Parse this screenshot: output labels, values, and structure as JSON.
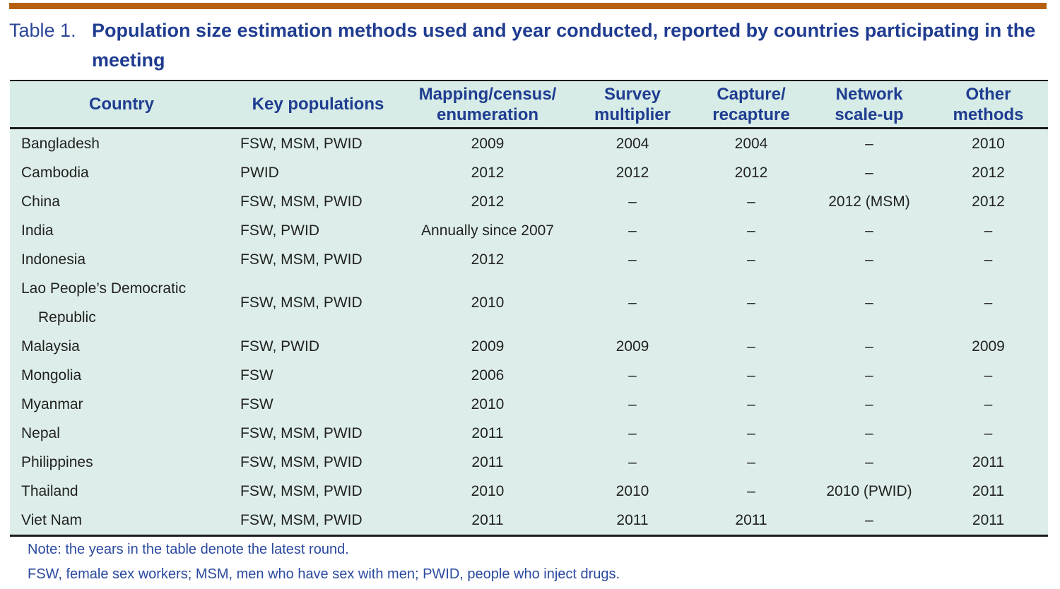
{
  "page": {
    "title_label": "Table 1.",
    "title_text": "Population size estimation methods used and year conducted, reported by countries participating in the\nmeeting"
  },
  "table": {
    "columns": [
      {
        "key": "country",
        "label": "Country"
      },
      {
        "key": "key_populations",
        "label": "Key populations"
      },
      {
        "key": "mapping",
        "label": "Mapping/census/\nenumeration"
      },
      {
        "key": "survey",
        "label": "Survey\nmultiplier"
      },
      {
        "key": "capture",
        "label": "Capture/\nrecapture"
      },
      {
        "key": "network",
        "label": "Network\nscale-up"
      },
      {
        "key": "other",
        "label": "Other\nmethods"
      }
    ],
    "rows": [
      {
        "country": "Bangladesh",
        "key_populations": "FSW, MSM, PWID",
        "mapping": "2009",
        "survey": "2004",
        "capture": "2004",
        "network": "–",
        "other": "2010"
      },
      {
        "country": "Cambodia",
        "key_populations": "PWID",
        "mapping": "2012",
        "survey": "2012",
        "capture": "2012",
        "network": "–",
        "other": "2012"
      },
      {
        "country": "China",
        "key_populations": "FSW, MSM, PWID",
        "mapping": "2012",
        "survey": "–",
        "capture": "–",
        "network": "2012 (MSM)",
        "other": "2012"
      },
      {
        "country": "India",
        "key_populations": "FSW, PWID",
        "mapping": "Annually since 2007",
        "survey": "–",
        "capture": "–",
        "network": "–",
        "other": "–"
      },
      {
        "country": "Indonesia",
        "key_populations": "FSW, MSM, PWID",
        "mapping": "2012",
        "survey": "–",
        "capture": "–",
        "network": "–",
        "other": "–"
      },
      {
        "country": "Lao People’s Democratic\nRepublic",
        "key_populations": "FSW, MSM, PWID",
        "mapping": "2010",
        "survey": "–",
        "capture": "–",
        "network": "–",
        "other": "–"
      },
      {
        "country": "Malaysia",
        "key_populations": "FSW, PWID",
        "mapping": "2009",
        "survey": "2009",
        "capture": "–",
        "network": "–",
        "other": "2009"
      },
      {
        "country": "Mongolia",
        "key_populations": "FSW",
        "mapping": "2006",
        "survey": "–",
        "capture": "–",
        "network": "–",
        "other": "–"
      },
      {
        "country": "Myanmar",
        "key_populations": "FSW",
        "mapping": "2010",
        "survey": "–",
        "capture": "–",
        "network": "–",
        "other": "–"
      },
      {
        "country": "Nepal",
        "key_populations": "FSW, MSM, PWID",
        "mapping": "2011",
        "survey": "–",
        "capture": "–",
        "network": "–",
        "other": "–"
      },
      {
        "country": "Philippines",
        "key_populations": "FSW, MSM, PWID",
        "mapping": "2011",
        "survey": "–",
        "capture": "–",
        "network": "–",
        "other": "2011"
      },
      {
        "country": "Thailand",
        "key_populations": "FSW, MSM, PWID",
        "mapping": "2010",
        "survey": "2010",
        "capture": "–",
        "network": "2010 (PWID)",
        "other": "2011"
      },
      {
        "country": "Viet Nam",
        "key_populations": "FSW, MSM, PWID",
        "mapping": "2011",
        "survey": "2011",
        "capture": "2011",
        "network": "–",
        "other": "2011"
      }
    ]
  },
  "notes": [
    "Note: the years in the table denote the latest round.",
    "FSW, female sex workers; MSM, men who have sex with men; PWID, people who inject drugs."
  ],
  "colors": {
    "accent_bar": "#b5600f",
    "title_navy": "#1f3c90",
    "header_text_navy": "#1f3d90",
    "header_background": "#d7ebe7",
    "body_background": "#ddeeea",
    "note_blue": "#2b4aa0",
    "rule_black": "#1b1b1b"
  }
}
